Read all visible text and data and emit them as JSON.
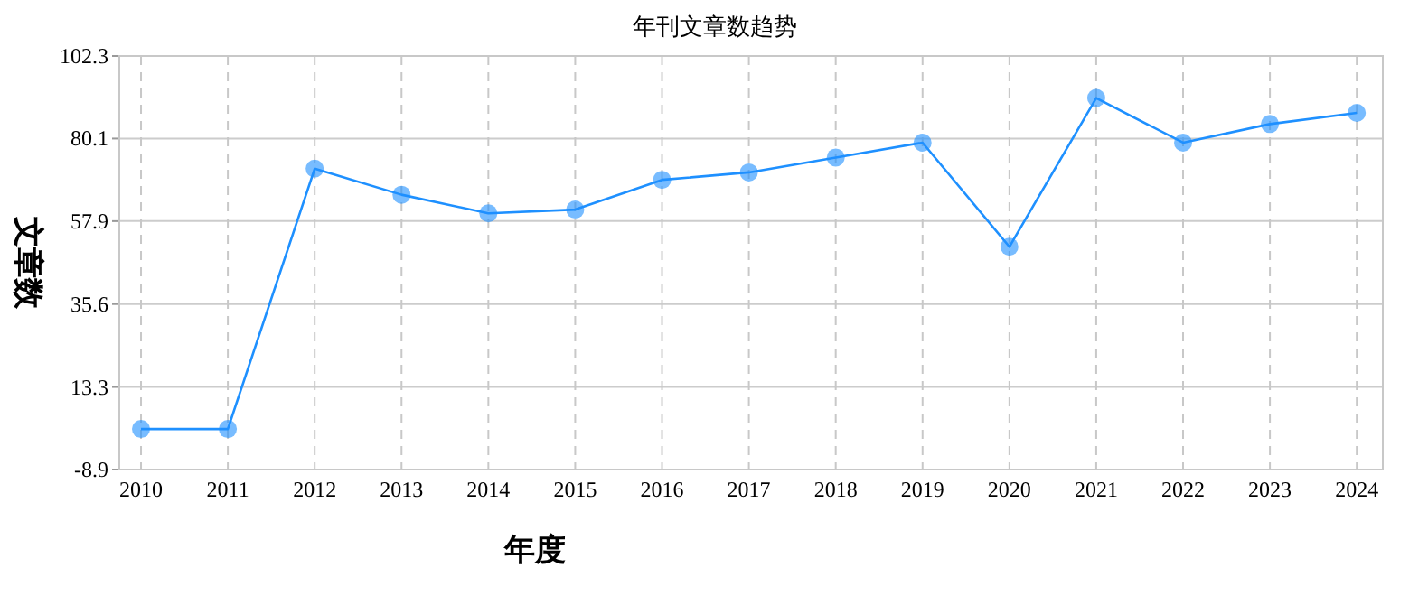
{
  "chart_data": {
    "type": "line",
    "title": "年刊文章数趋势",
    "xlabel": "年度",
    "ylabel": "文章数",
    "categories": [
      "2010",
      "2011",
      "2012",
      "2013",
      "2014",
      "2015",
      "2016",
      "2017",
      "2018",
      "2019",
      "2020",
      "2021",
      "2022",
      "2023",
      "2024"
    ],
    "series": [
      {
        "color": "#1e90ff",
        "values": [
          2,
          2,
          72,
          65,
          60,
          61,
          69,
          71,
          75,
          79,
          51,
          91,
          79,
          84,
          87
        ]
      }
    ],
    "ylim": [
      -8.9,
      102.3
    ],
    "yticks": [
      -8.9,
      13.3,
      35.6,
      57.9,
      80.1,
      102.3
    ],
    "grid": true,
    "marker": "circle",
    "line_style": "solid"
  }
}
